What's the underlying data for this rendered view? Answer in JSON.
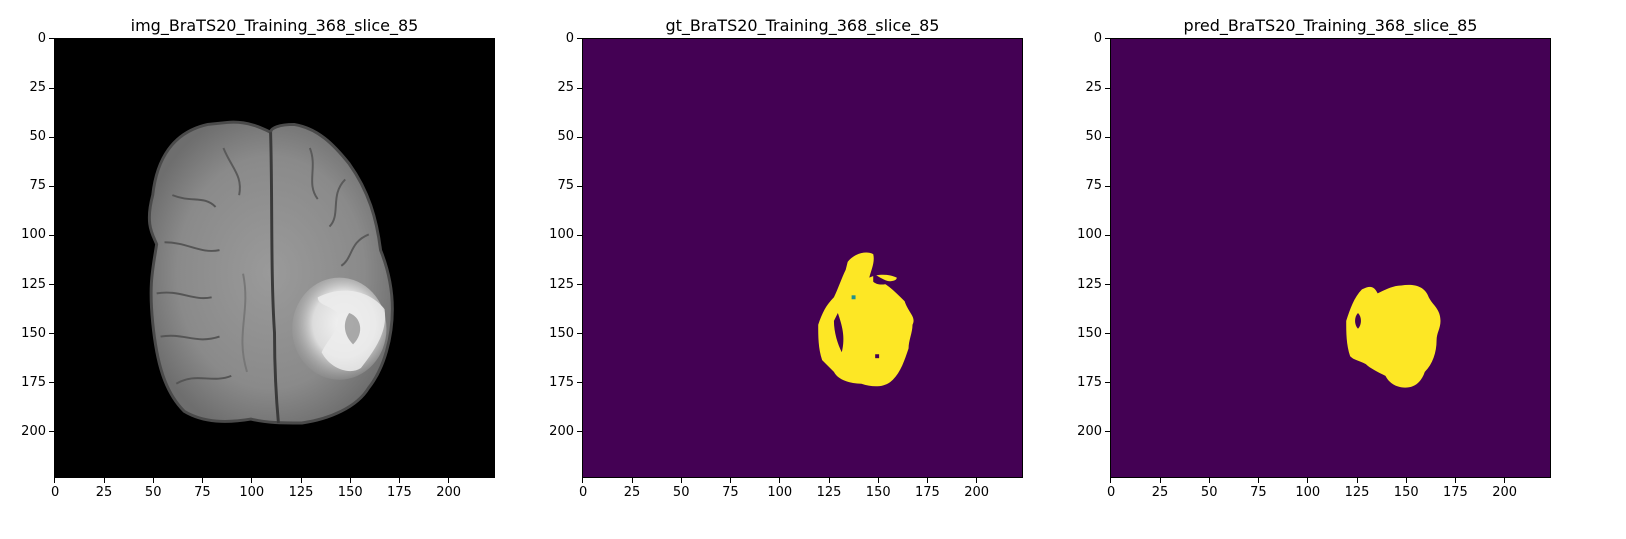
{
  "figure": {
    "panels": [
      {
        "id": "img",
        "title": "img_BraTS20_Training_368_slice_85",
        "kind": "mri-image",
        "colormap": "gray"
      },
      {
        "id": "gt",
        "title": "gt_BraTS20_Training_368_slice_85",
        "kind": "segmentation-mask",
        "colormap": "viridis",
        "background_color": "#440154",
        "foreground_color": "#fde725"
      },
      {
        "id": "pred",
        "title": "pred_BraTS20_Training_368_slice_85",
        "kind": "segmentation-mask",
        "colormap": "viridis",
        "background_color": "#440154",
        "foreground_color": "#fde725"
      }
    ],
    "axes": {
      "x_range": [
        0,
        224
      ],
      "y_range": [
        0,
        224
      ],
      "y_inverted": true,
      "x_ticks": [
        "0",
        "25",
        "50",
        "75",
        "100",
        "125",
        "150",
        "175",
        "200"
      ],
      "y_ticks": [
        "0",
        "25",
        "50",
        "75",
        "100",
        "125",
        "150",
        "175",
        "200"
      ]
    }
  }
}
